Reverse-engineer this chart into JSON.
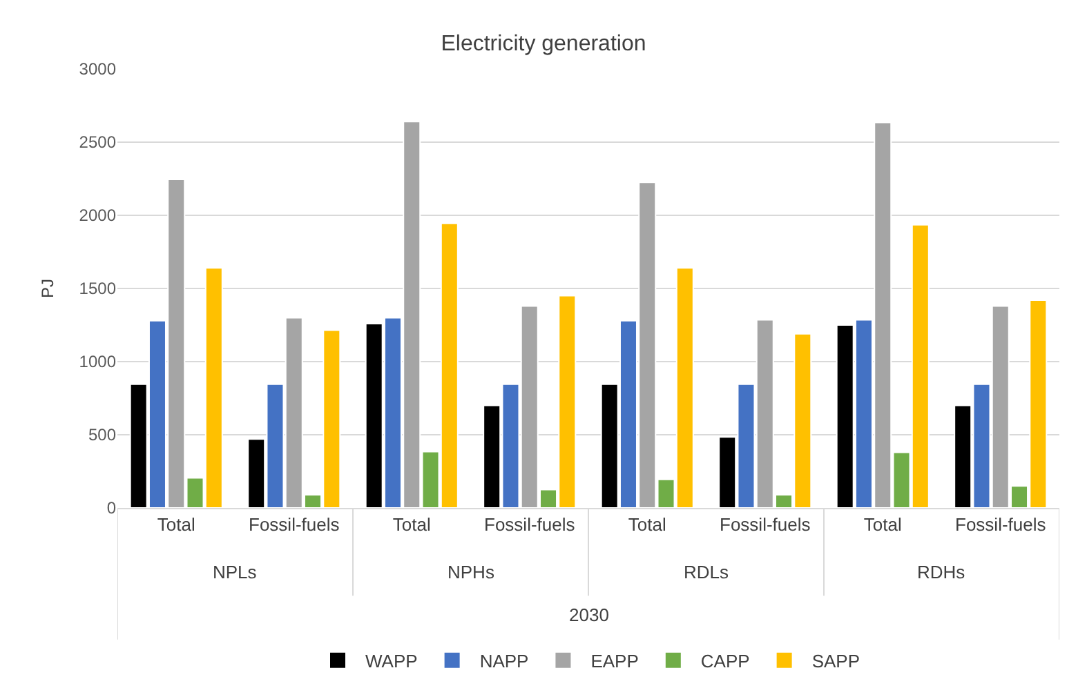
{
  "chart_data": {
    "type": "bar",
    "title": "Electricity generation",
    "ylabel": "PJ",
    "categories": [
      "Total",
      "Fossil-fuels",
      "Total",
      "Fossil-fuels",
      "Total",
      "Fossil-fuels",
      "Total",
      "Fossil-fuels"
    ],
    "series": [
      {
        "name": "WAPP",
        "color": "#000000",
        "values": [
          845,
          470,
          1260,
          700,
          845,
          485,
          1250,
          700
        ]
      },
      {
        "name": "NAPP",
        "color": "#4472c4",
        "values": [
          1280,
          845,
          1300,
          845,
          1280,
          845,
          1285,
          845
        ]
      },
      {
        "name": "EAPP",
        "color": "#a5a5a5",
        "values": [
          2245,
          1300,
          2640,
          1380,
          2225,
          1285,
          2635,
          1380
        ]
      },
      {
        "name": "CAPP",
        "color": "#70ad47",
        "values": [
          205,
          90,
          385,
          125,
          195,
          90,
          380,
          150
        ]
      },
      {
        "name": "SAPP",
        "color": "#ffc000",
        "values": [
          1640,
          1215,
          1945,
          1450,
          1640,
          1190,
          1935,
          1420
        ]
      }
    ],
    "annotations": [
      "NPLs",
      "NPHs",
      "RDLs",
      "RDHs",
      "2030"
    ],
    "ylim": [
      0,
      3000
    ],
    "yticks": [
      0,
      500,
      1000,
      1500,
      2000,
      2500,
      3000
    ],
    "grid": "y",
    "legend": "bottom"
  }
}
